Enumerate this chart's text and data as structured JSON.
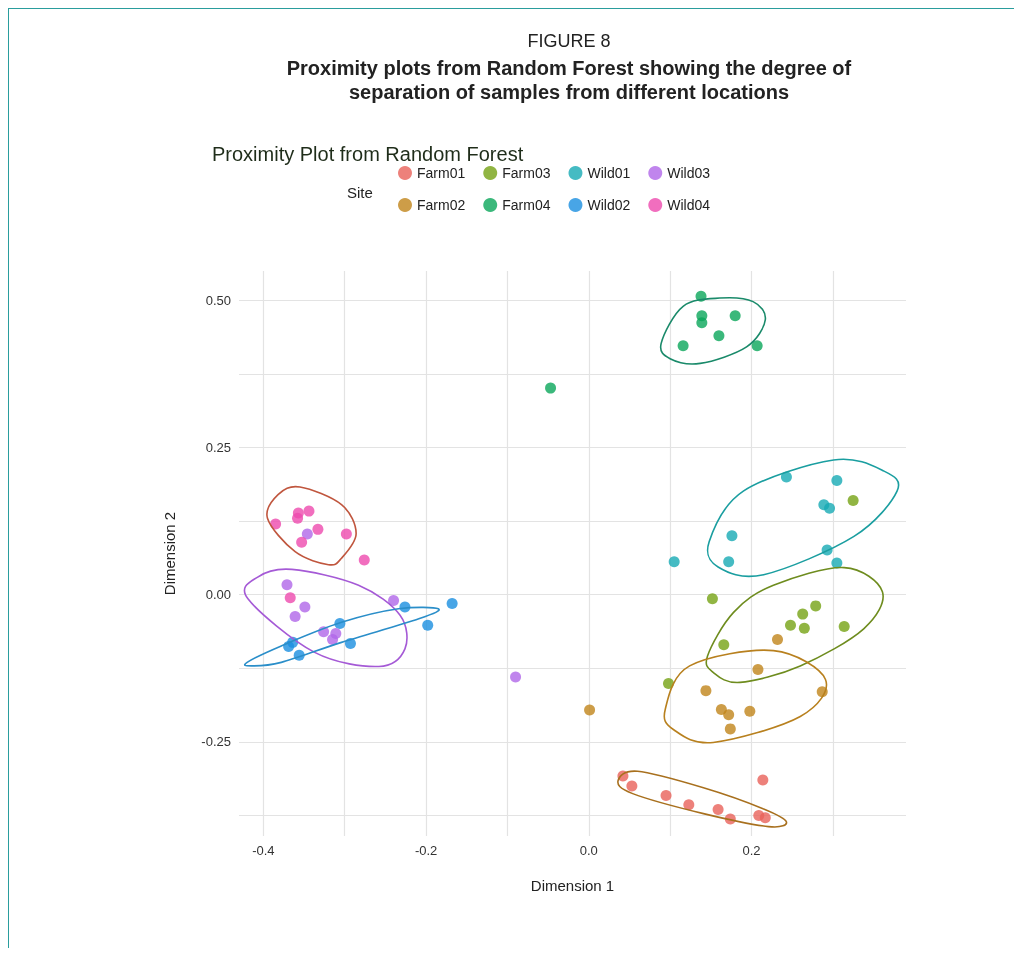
{
  "chart_data": {
    "type": "scatter",
    "title": "Proximity Plot from Random Forest",
    "xlabel": "Dimension 1",
    "ylabel": "Dimension 2",
    "legend_title": "Site",
    "legend": "top",
    "grid": true,
    "marker": "circle",
    "annotations": [
      "FIGURE 8",
      "Proximity plots from Random Forest showing the degree of separation of samples from different locations"
    ],
    "xlim": [
      -0.43,
      0.39
    ],
    "ylim": [
      -0.41,
      0.55
    ],
    "xticks": [
      -0.4,
      {
        "value": -0.3,
        "label": null
      },
      -0.2,
      {
        "value": -0.1,
        "label": null
      },
      {
        "value": 0,
        "label": "0.0"
      },
      {
        "value": 0.1,
        "label": null
      },
      0.2,
      {
        "value": 0.3,
        "label": null
      }
    ],
    "yticks": [
      {
        "value": -0.375,
        "label": null
      },
      {
        "value": -0.25,
        "label": "-0.25"
      },
      {
        "value": -0.125,
        "label": null
      },
      {
        "value": 0,
        "label": "0.00"
      },
      {
        "value": 0.125,
        "label": null
      },
      {
        "value": 0.25,
        "label": "0.25"
      },
      {
        "value": 0.375,
        "label": null
      },
      {
        "value": 0.5,
        "label": "0.50"
      }
    ],
    "series": [
      {
        "name": "Farm01",
        "color": "#e8625a",
        "x": [
          0.042,
          0.053,
          0.095,
          0.123,
          0.159,
          0.174,
          0.209,
          0.217,
          0.214
        ],
        "values": [
          -0.308,
          -0.325,
          -0.341,
          -0.357,
          -0.365,
          -0.381,
          -0.375,
          -0.379,
          -0.315
        ]
      },
      {
        "name": "Farm02",
        "color": "#c0841a",
        "x": [
          0.232,
          0.208,
          0.287,
          0.144,
          0.163,
          0.172,
          0.198,
          0.174,
          0.001
        ],
        "values": [
          -0.076,
          -0.127,
          -0.165,
          -0.163,
          -0.195,
          -0.204,
          -0.198,
          -0.228,
          -0.196
        ]
      },
      {
        "name": "Farm03",
        "color": "#76a214",
        "x": [
          0.325,
          0.152,
          0.279,
          0.263,
          0.248,
          0.265,
          0.314,
          0.166,
          0.098
        ],
        "values": [
          0.16,
          -0.007,
          -0.019,
          -0.033,
          -0.052,
          -0.057,
          -0.054,
          -0.085,
          -0.151
        ]
      },
      {
        "name": "Farm04",
        "color": "#0aa65a",
        "x": [
          0.138,
          0.139,
          0.139,
          0.18,
          0.16,
          0.116,
          0.207,
          -0.047
        ],
        "values": [
          0.507,
          0.474,
          0.462,
          0.474,
          0.44,
          0.423,
          0.423,
          0.351
        ]
      },
      {
        "name": "Wild01",
        "color": "#17aab4",
        "x": [
          0.243,
          0.305,
          0.289,
          0.296,
          0.176,
          0.293,
          0.172,
          0.105,
          0.305
        ],
        "values": [
          0.2,
          0.194,
          0.153,
          0.147,
          0.1,
          0.076,
          0.056,
          0.056,
          0.054
        ]
      },
      {
        "name": "Wild02",
        "color": "#1a8fe0",
        "x": [
          -0.226,
          -0.168,
          -0.198,
          -0.306,
          -0.293,
          -0.364,
          -0.369,
          -0.356
        ],
        "values": [
          -0.021,
          -0.015,
          -0.052,
          -0.049,
          -0.083,
          -0.081,
          -0.088,
          -0.103
        ]
      },
      {
        "name": "Wild03",
        "color": "#b067e8",
        "x": [
          -0.346,
          -0.371,
          -0.349,
          -0.361,
          -0.24,
          -0.326,
          -0.311,
          -0.315,
          -0.09
        ],
        "values": [
          0.103,
          0.017,
          -0.021,
          -0.037,
          -0.01,
          -0.063,
          -0.066,
          -0.076,
          -0.14
        ]
      },
      {
        "name": "Wild04",
        "color": "#ee4aae",
        "x": [
          -0.385,
          -0.358,
          -0.357,
          -0.344,
          -0.333,
          -0.353,
          -0.298,
          -0.276,
          -0.367
        ],
        "values": [
          0.12,
          0.13,
          0.139,
          0.142,
          0.111,
          0.089,
          0.103,
          0.059,
          -0.005
        ]
      }
    ]
  }
}
